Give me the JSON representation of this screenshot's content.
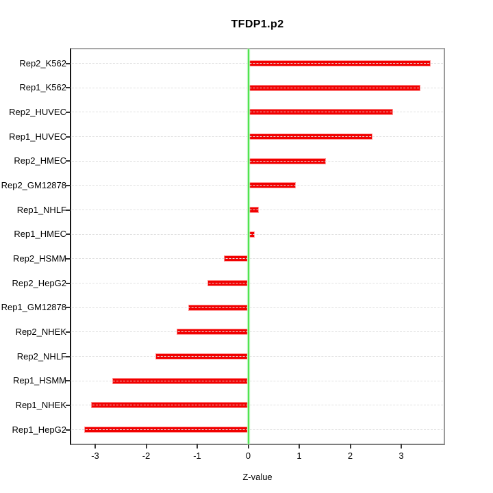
{
  "title": "TFDP1.p2",
  "chart_data": {
    "type": "bar",
    "orientation": "horizontal",
    "title": "TFDP1.p2",
    "xlabel": "Z-value",
    "ylabel": "",
    "categories": [
      "Rep2_K562",
      "Rep1_K562",
      "Rep2_HUVEC",
      "Rep1_HUVEC",
      "Rep2_HMEC",
      "Rep2_GM12878",
      "Rep1_NHLF",
      "Rep1_HMEC",
      "Rep2_HSMM",
      "Rep2_HepG2",
      "Rep1_GM12878",
      "Rep2_NHEK",
      "Rep2_NHLF",
      "Rep1_HSMM",
      "Rep1_NHEK",
      "Rep1_HepG2"
    ],
    "values": [
      3.57,
      3.37,
      2.84,
      2.43,
      1.52,
      0.93,
      0.21,
      0.13,
      -0.48,
      -0.8,
      -1.17,
      -1.41,
      -1.82,
      -2.67,
      -3.08,
      -3.21
    ],
    "x_ticks": [
      "-3",
      "-2",
      "-1",
      "0",
      "1",
      "2",
      "3"
    ],
    "x_tick_values": [
      -3,
      -2,
      -1,
      0,
      1,
      2,
      3
    ],
    "xlim": [
      -3.47,
      3.83
    ],
    "grid": true,
    "legend": false,
    "colors": {
      "bar_fill": "#f10000",
      "bar_edge": "#ff9898",
      "zero_line": "#50e450",
      "gridline": "#e0e0e0",
      "box": "#9a9a9a",
      "axis_left": "#161616",
      "text": "#000000"
    }
  }
}
